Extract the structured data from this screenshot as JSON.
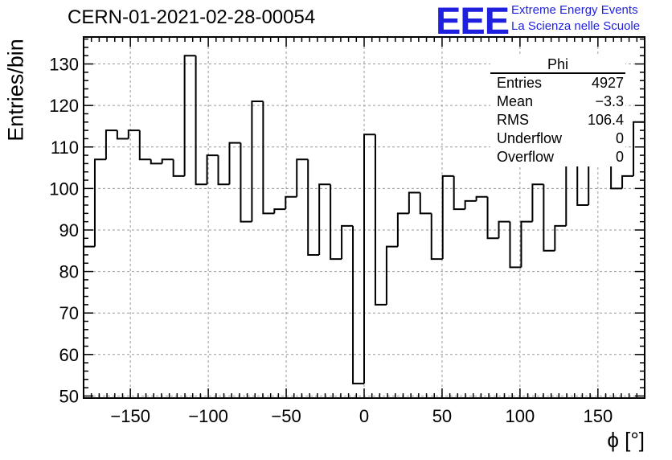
{
  "header": {
    "run_title": "CERN-01-2021-02-28-00054",
    "logo_text": "EEE",
    "logo_line1": "Extreme Energy Events",
    "logo_line2": "La Scienza nelle Scuole",
    "logo_color": "#1f1fe0"
  },
  "stats_box": {
    "title": "Phi",
    "rows": [
      {
        "label": "Entries",
        "value": "4927"
      },
      {
        "label": "Mean",
        "value": "−3.3"
      },
      {
        "label": "RMS",
        "value": "106.4"
      },
      {
        "label": "Underflow",
        "value": "0"
      },
      {
        "label": "Overflow",
        "value": "0"
      }
    ]
  },
  "chart_data": {
    "type": "bar",
    "style": "step-histogram",
    "xlabel": "ϕ [°]",
    "ylabel": "Entries/bin",
    "xlim": [
      -180,
      180
    ],
    "ylim": [
      49.5,
      136.5
    ],
    "bin_width": 7.2,
    "xticks": [
      -150,
      -100,
      -50,
      0,
      50,
      100,
      150
    ],
    "xtick_labels": [
      "−150",
      "−100",
      "−50",
      "0",
      "50",
      "100",
      "150"
    ],
    "yticks": [
      50,
      60,
      70,
      80,
      90,
      100,
      110,
      120,
      130
    ],
    "grid": true,
    "values": [
      86,
      107,
      114,
      112,
      114,
      107,
      106,
      107,
      103,
      132,
      101,
      108,
      101,
      111,
      92,
      121,
      94,
      95,
      98,
      107,
      84,
      101,
      83,
      91,
      53,
      113,
      72,
      86,
      94,
      99,
      94,
      83,
      103,
      95,
      97,
      98,
      88,
      92,
      81,
      92,
      101,
      85,
      91,
      106,
      96,
      107,
      107,
      100,
      103,
      116
    ]
  }
}
